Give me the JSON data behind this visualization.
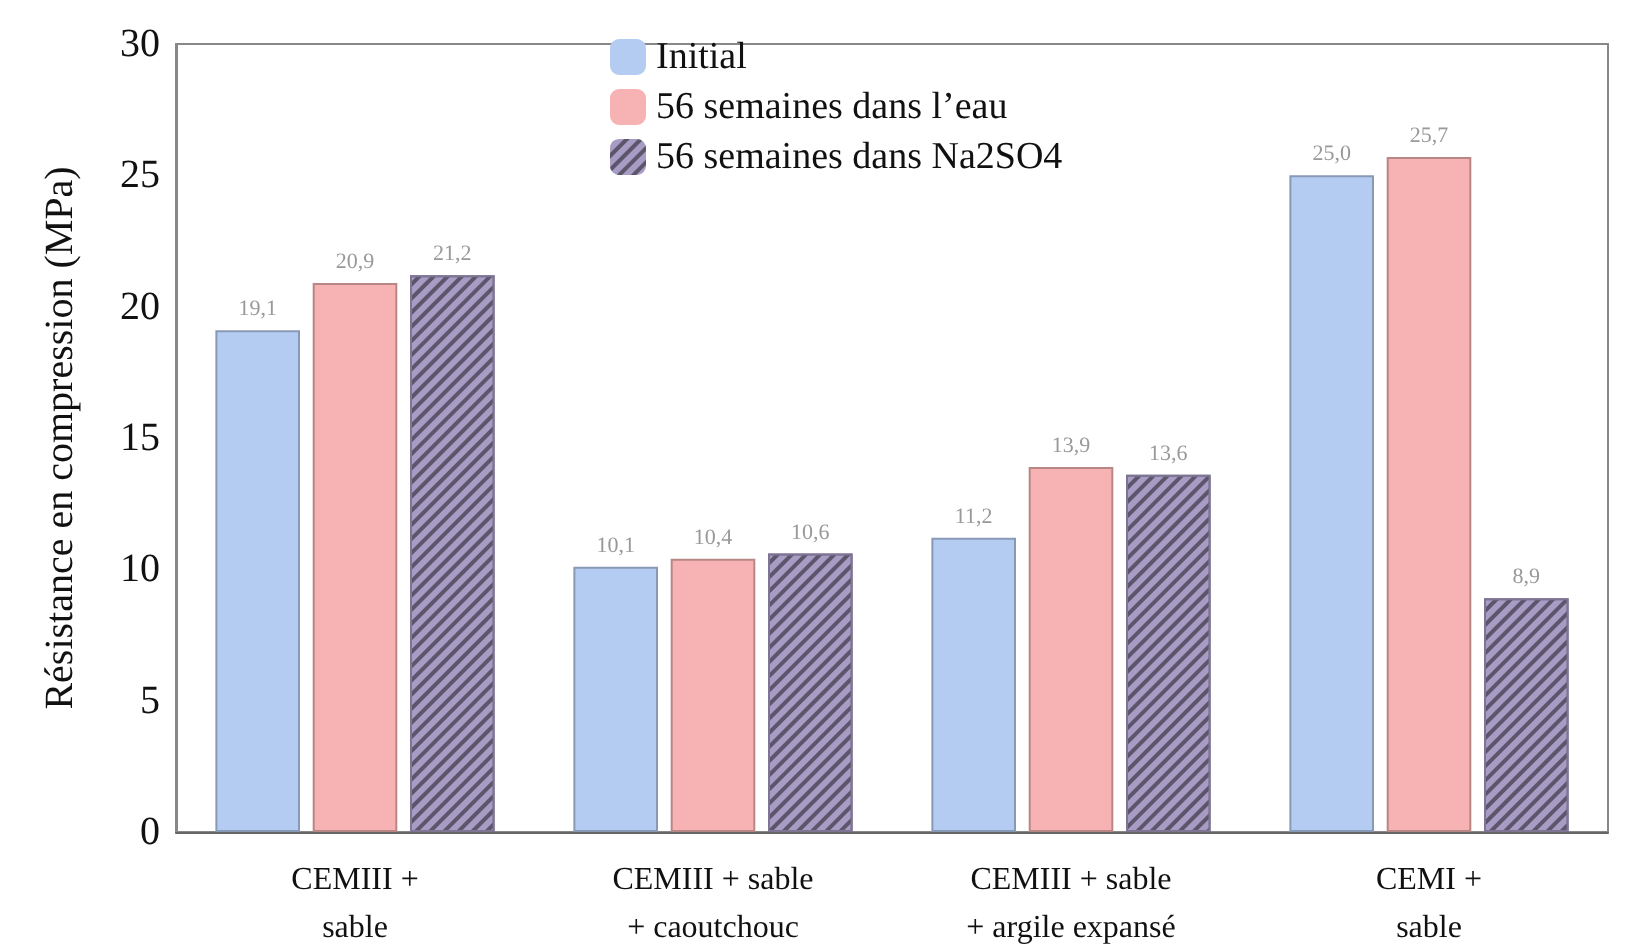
{
  "chart_data": {
    "type": "bar",
    "ylabel": "Résistance en compression (MPa)",
    "categories": [
      "CEMIII +\nsable",
      "CEMIII + sable\n+ caoutchouc",
      "CEMIII + sable\n+ argile expansé",
      "CEMI +\nsable"
    ],
    "series": [
      {
        "name": "Initial",
        "color": "#b5ccf2",
        "values": [
          19.1,
          10.1,
          11.2,
          25.0
        ],
        "value_labels": [
          "19,1",
          "10,1",
          "11,2",
          "25,0"
        ]
      },
      {
        "name": "56 semaines dans l’eau",
        "color": "#f7b3b3",
        "values": [
          20.9,
          10.4,
          13.9,
          25.7
        ],
        "value_labels": [
          "20,9",
          "10,4",
          "13,9",
          "25,7"
        ]
      },
      {
        "name": "56 semaines dans Na2SO4",
        "color": "#a89cc4",
        "values": [
          21.2,
          10.6,
          13.6,
          8.9
        ],
        "value_labels": [
          "21,2",
          "10,6",
          "13,6",
          "8,9"
        ]
      }
    ],
    "ylim": [
      0,
      30
    ],
    "yticks": [
      0,
      5,
      10,
      15,
      20,
      25,
      30
    ],
    "grid": false,
    "legend": "top"
  }
}
